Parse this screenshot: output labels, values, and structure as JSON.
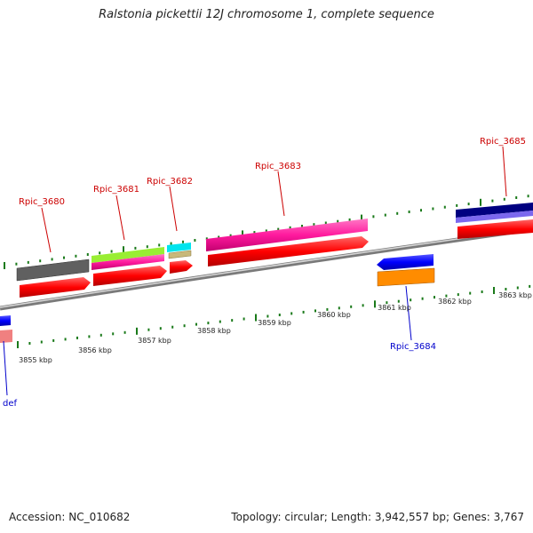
{
  "title": "Ralstonia pickettii 12J chromosome 1, complete sequence",
  "footer": {
    "accession": "Accession: NC_010682",
    "summary": "Topology: circular; Length: 3,942,557 bp; Genes: 3,767"
  },
  "scale": {
    "labels": [
      "3855 kbp",
      "3856 kbp",
      "3857 kbp",
      "3858 kbp",
      "3859 kbp",
      "3860 kbp",
      "3861 kbp",
      "3862 kbp",
      "3863 kbp"
    ]
  },
  "genes": [
    {
      "label": "Rpic_3680",
      "color": "#cc0000"
    },
    {
      "label": "Rpic_3681",
      "color": "#cc0000"
    },
    {
      "label": "Rpic_3682",
      "color": "#cc0000"
    },
    {
      "label": "Rpic_3683",
      "color": "#cc0000"
    },
    {
      "label": "Rpic_3684",
      "color": "#0000cc"
    },
    {
      "label": "Rpic_3685",
      "color": "#cc0000"
    },
    {
      "label": "def",
      "color": "#0000cc"
    }
  ],
  "colors": {
    "backbone": "#888888",
    "tick": "#1a7a1a",
    "forward_cds": "#ff0000",
    "reverse_cds": "#0000ff",
    "product_magenta": "#ff1493",
    "product_gray": "#666666",
    "product_lime": "#99ee33",
    "product_cyan": "#00e5ee",
    "product_tan": "#c8b87a",
    "product_navy": "#000080",
    "product_lavender": "#7b68ee",
    "product_orange": "#ff8c00",
    "product_pink": "#f08080"
  }
}
